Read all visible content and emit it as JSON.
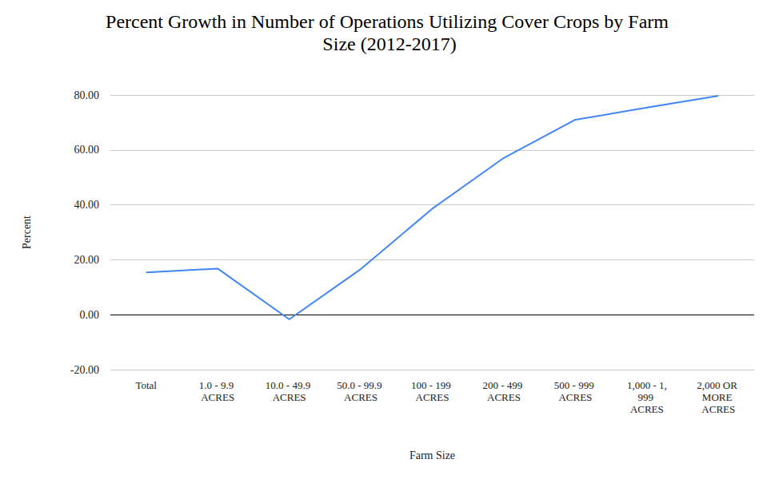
{
  "chart_data": {
    "type": "line",
    "title": "Percent Growth in Number of Operations Utilizing Cover Crops by Farm Size (2012-2017)",
    "x_label": "Farm Size",
    "y_label": "Percent",
    "categories": [
      "Total",
      "1.0 - 9.9 ACRES",
      "10.0 - 49.9 ACRES",
      "50.0 - 99.9 ACRES",
      "100 - 199 ACRES",
      "200 - 499 ACRES",
      "500 - 999 ACRES",
      "1,000 - 1,999 ACRES",
      "2,000 OR MORE ACRES"
    ],
    "values": [
      15.4,
      16.8,
      -1.7,
      16.6,
      38.6,
      57.1,
      71.0,
      75.4,
      79.7
    ],
    "color": "#4285f4",
    "ylim": [
      -20,
      80
    ],
    "yticks": [
      {
        "value": -20,
        "label": "-20.00"
      },
      {
        "value": 0,
        "label": "0.00"
      },
      {
        "value": 20,
        "label": "20.00"
      },
      {
        "value": 40,
        "label": "40.00"
      },
      {
        "value": 60,
        "label": "60.00"
      },
      {
        "value": 80,
        "label": "80.00"
      }
    ],
    "grid": true,
    "data_labels": false
  }
}
